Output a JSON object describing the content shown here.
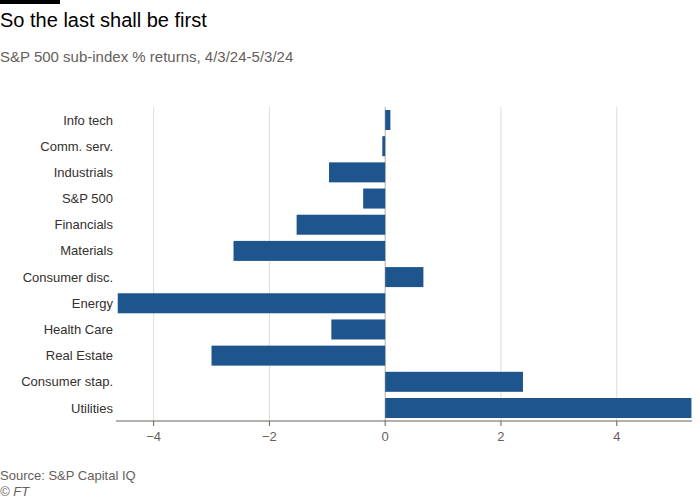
{
  "chart_data": {
    "type": "bar",
    "orientation": "horizontal",
    "title": "So the last shall be first",
    "subtitle": "S&P 500 sub-index % returns, 4/3/24-5/3/24",
    "source": "Source: S&P Capital IQ",
    "credit": "© FT",
    "categories": [
      "Info tech",
      "Comm. serv.",
      "Industrials",
      "S&P 500",
      "Financials",
      "Materials",
      "Consumer disc.",
      "Energy",
      "Health Care",
      "Real Estate",
      "Consumer stap.",
      "Utilities"
    ],
    "values": [
      0.09,
      -0.05,
      -0.97,
      -0.38,
      -1.53,
      -2.62,
      0.66,
      -4.62,
      -0.93,
      -3.0,
      2.38,
      5.29
    ],
    "color": "#1e558c",
    "xlim": [
      -4.65,
      5.3
    ],
    "xticks": [
      {
        "value": -4,
        "label": "−4"
      },
      {
        "value": -2,
        "label": "−2"
      },
      0,
      2,
      4
    ],
    "grid": true
  }
}
